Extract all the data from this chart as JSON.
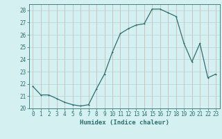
{
  "x": [
    0,
    1,
    2,
    3,
    4,
    5,
    6,
    7,
    8,
    9,
    10,
    11,
    12,
    13,
    14,
    15,
    16,
    17,
    18,
    19,
    20,
    21,
    22,
    23
  ],
  "y": [
    21.8,
    21.1,
    21.1,
    20.8,
    20.5,
    20.3,
    20.2,
    20.3,
    21.6,
    22.8,
    24.6,
    26.1,
    26.5,
    26.8,
    26.9,
    28.1,
    28.1,
    27.8,
    27.5,
    25.3,
    23.8,
    25.3,
    22.5,
    22.8
  ],
  "line_color": "#2d6e6e",
  "marker": "s",
  "marker_size": 2.0,
  "bg_color": "#d4f0f0",
  "grid_color_major": "#c0a0a0",
  "grid_color_minor": "#b8d8d8",
  "xlabel": "Humidex (Indice chaleur)",
  "xlim": [
    -0.5,
    23.5
  ],
  "ylim": [
    20,
    28.5
  ],
  "yticks": [
    20,
    21,
    22,
    23,
    24,
    25,
    26,
    27,
    28
  ],
  "xticks": [
    0,
    1,
    2,
    3,
    4,
    5,
    6,
    7,
    8,
    9,
    10,
    11,
    12,
    13,
    14,
    15,
    16,
    17,
    18,
    19,
    20,
    21,
    22,
    23
  ],
  "tick_color": "#2d6e6e",
  "label_fontsize": 5.5,
  "xlabel_fontsize": 6.5
}
